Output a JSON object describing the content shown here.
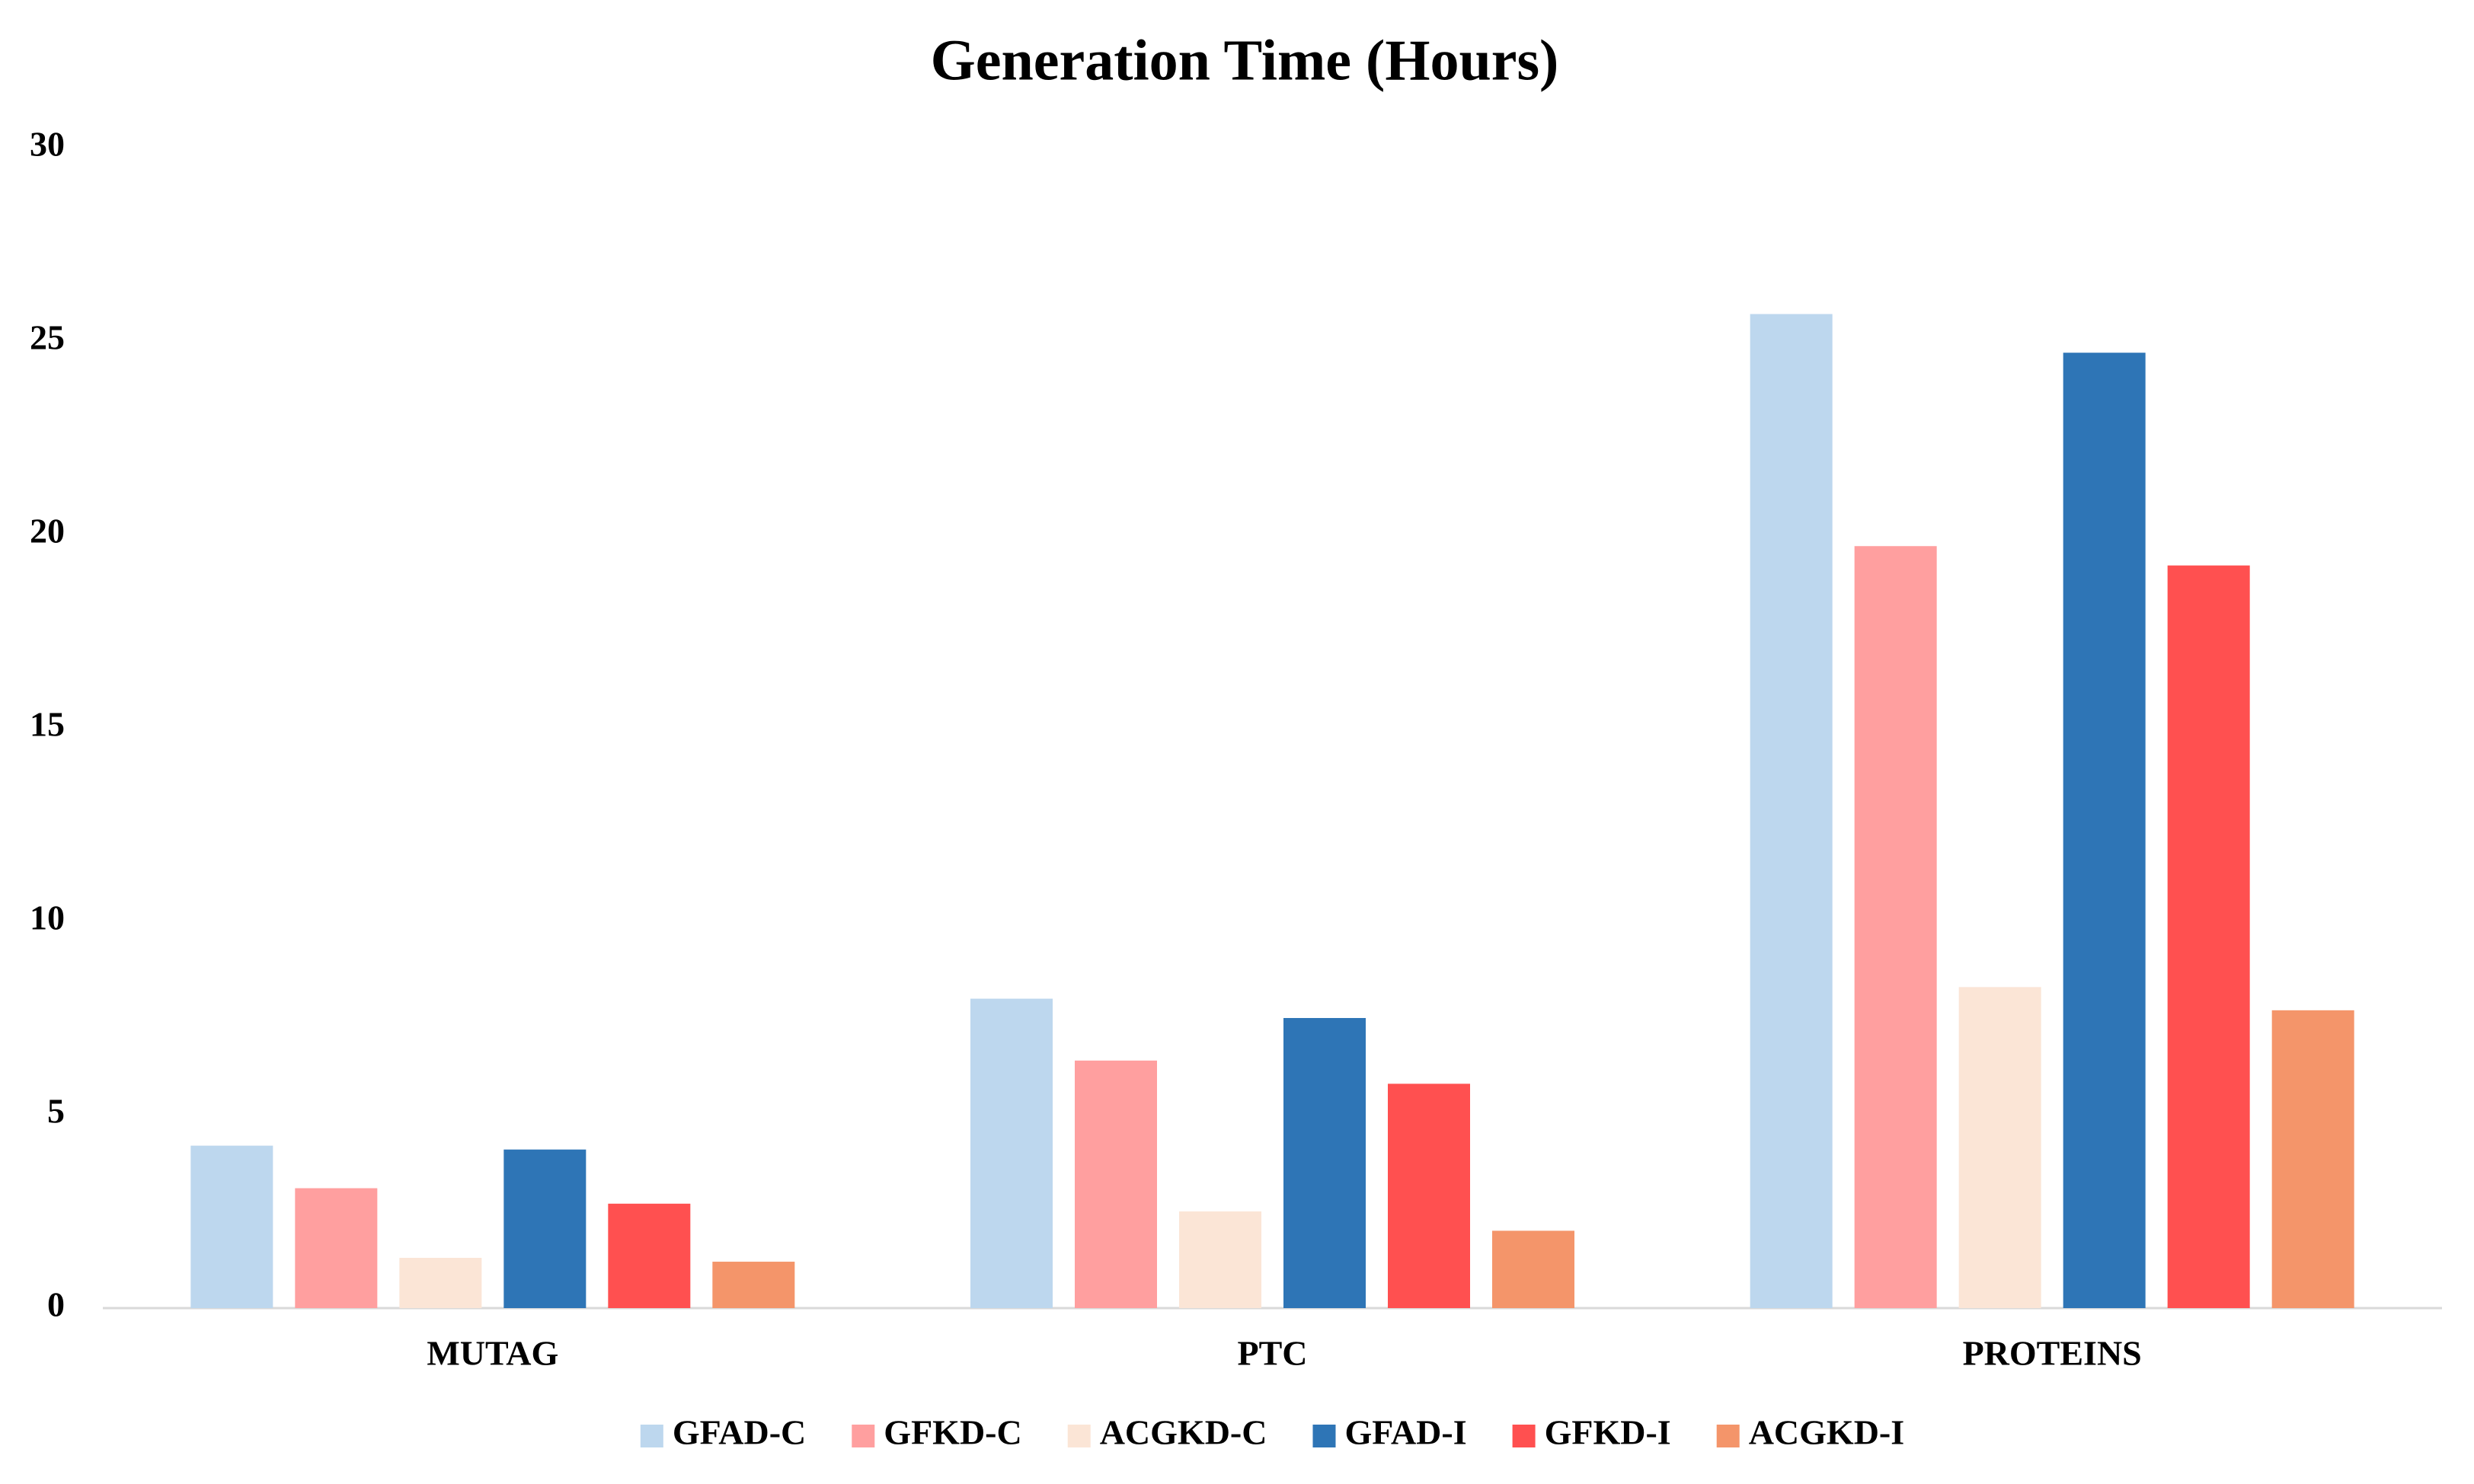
{
  "chart_data": {
    "type": "bar",
    "title": "Generation Time (Hours)",
    "categories": [
      "MUTAG",
      "PTC",
      "PROTEINS"
    ],
    "series": [
      {
        "name": "GFAD-C",
        "color": "#bdd7ee",
        "values": [
          4.2,
          8.0,
          25.7
        ]
      },
      {
        "name": "GFKD-C",
        "color": "#ff9f9f",
        "values": [
          3.1,
          6.4,
          19.7
        ]
      },
      {
        "name": "ACGKD-C",
        "color": "#fbe5d6",
        "values": [
          1.3,
          2.5,
          8.3
        ]
      },
      {
        "name": "GFAD-I",
        "color": "#2e75b6",
        "values": [
          4.1,
          7.5,
          24.7
        ]
      },
      {
        "name": "GFKD-I",
        "color": "#ff5050",
        "values": [
          2.7,
          5.8,
          19.2
        ]
      },
      {
        "name": "ACGKD-I",
        "color": "#f4956a",
        "values": [
          1.2,
          2.0,
          7.7
        ]
      }
    ],
    "ylim": [
      0,
      30
    ],
    "yticks": [
      0,
      5,
      10,
      15,
      20,
      25,
      30
    ],
    "grid": false,
    "legend": "bottom"
  }
}
